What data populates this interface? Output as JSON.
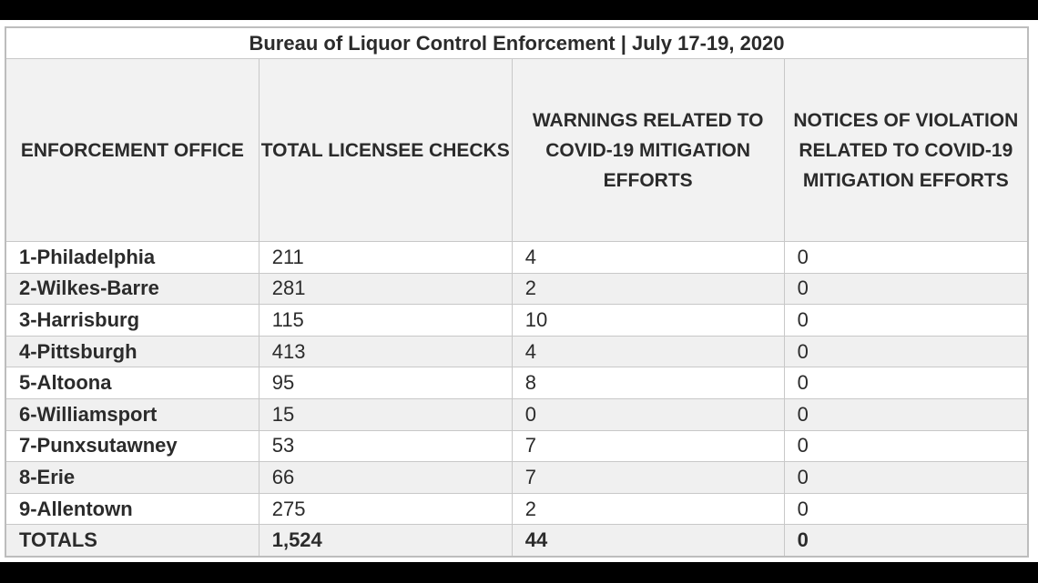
{
  "title": "Bureau of Liquor Control Enforcement | July 17-19, 2020",
  "headers": [
    "ENFORCEMENT OFFICE",
    "TOTAL LICENSEE CHECKS",
    "WARNINGS RELATED TO COVID-19 MITIGATION EFFORTS",
    "NOTICES OF VIOLATION RELATED TO COVID-19 MITIGATION EFFORTS"
  ],
  "rows": [
    [
      "1-Philadelphia",
      "211",
      "4",
      "0"
    ],
    [
      "2-Wilkes-Barre",
      "281",
      "2",
      "0"
    ],
    [
      "3-Harrisburg",
      "115",
      "10",
      "0"
    ],
    [
      "4-Pittsburgh",
      "413",
      "4",
      "0"
    ],
    [
      "5-Altoona",
      "95",
      "8",
      "0"
    ],
    [
      "6-Williamsport",
      "15",
      "0",
      "0"
    ],
    [
      "7-Punxsutawney",
      "53",
      "7",
      "0"
    ],
    [
      "8-Erie",
      "66",
      "7",
      "0"
    ],
    [
      "9-Allentown",
      "275",
      "2",
      "0"
    ]
  ],
  "totals": [
    "TOTALS",
    "1,524",
    "44",
    "0"
  ]
}
